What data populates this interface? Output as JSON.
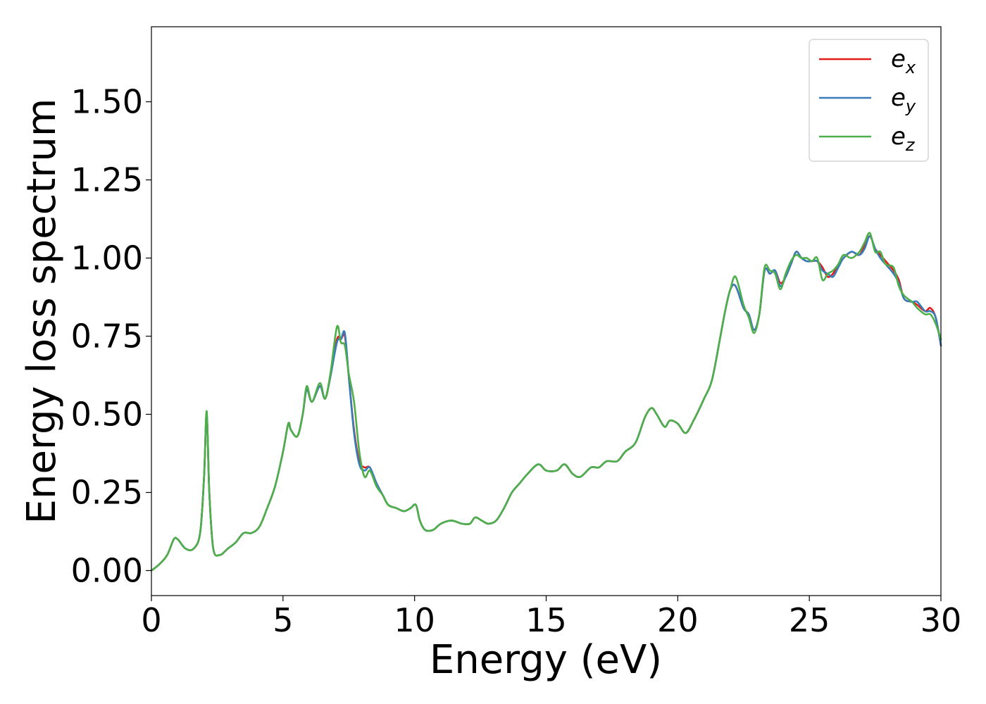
{
  "chart_data": {
    "type": "line",
    "title": "",
    "xlabel": "Energy (eV)",
    "ylabel": "Energy loss spectrum",
    "xlim": [
      0,
      30
    ],
    "ylim": [
      -0.08,
      1.74
    ],
    "xticks": [
      0,
      5,
      10,
      15,
      20,
      25,
      30
    ],
    "xtick_labels": [
      "0",
      "5",
      "10",
      "15",
      "20",
      "25",
      "30"
    ],
    "yticks": [
      0.0,
      0.25,
      0.5,
      0.75,
      1.0,
      1.25,
      1.5
    ],
    "ytick_labels": [
      "0.00",
      "0.25",
      "0.50",
      "0.75",
      "1.00",
      "1.25",
      "1.50"
    ],
    "grid": false,
    "legend_position": "top-right",
    "x": [
      0.0,
      0.3,
      0.6,
      0.85,
      1.0,
      1.3,
      1.6,
      1.85,
      2.0,
      2.1,
      2.2,
      2.35,
      2.6,
      2.9,
      3.2,
      3.5,
      3.8,
      4.1,
      4.4,
      4.7,
      5.0,
      5.2,
      5.3,
      5.55,
      5.75,
      5.9,
      6.1,
      6.4,
      6.6,
      6.8,
      7.05,
      7.2,
      7.35,
      7.5,
      7.7,
      7.9,
      8.1,
      8.3,
      8.55,
      8.8,
      9.0,
      9.3,
      9.6,
      9.85,
      10.05,
      10.2,
      10.4,
      10.7,
      11.0,
      11.4,
      11.8,
      12.1,
      12.3,
      12.55,
      12.8,
      13.1,
      13.4,
      13.7,
      14.0,
      14.3,
      14.7,
      15.0,
      15.4,
      15.7,
      16.0,
      16.3,
      16.7,
      17.0,
      17.3,
      17.7,
      18.0,
      18.4,
      18.75,
      19.0,
      19.2,
      19.5,
      19.7,
      20.0,
      20.3,
      20.6,
      21.0,
      21.3,
      21.6,
      21.8,
      22.0,
      22.2,
      22.5,
      22.7,
      22.9,
      23.1,
      23.3,
      23.5,
      23.7,
      23.9,
      24.1,
      24.3,
      24.5,
      24.7,
      24.9,
      25.1,
      25.3,
      25.5,
      25.7,
      25.9,
      26.1,
      26.3,
      26.6,
      26.9,
      27.1,
      27.3,
      27.5,
      27.7,
      27.9,
      28.2,
      28.4,
      28.6,
      28.9,
      29.1,
      29.4,
      29.6,
      29.8,
      30.0
    ],
    "series": [
      {
        "name": "e_x",
        "symbol": "e",
        "subscript": "x",
        "color": "#e41a1c",
        "values": [
          0.0,
          0.02,
          0.05,
          0.1,
          0.1,
          0.07,
          0.07,
          0.12,
          0.3,
          0.5,
          0.25,
          0.07,
          0.05,
          0.07,
          0.09,
          0.12,
          0.12,
          0.14,
          0.2,
          0.27,
          0.38,
          0.47,
          0.45,
          0.43,
          0.5,
          0.58,
          0.54,
          0.59,
          0.55,
          0.62,
          0.74,
          0.74,
          0.75,
          0.62,
          0.45,
          0.35,
          0.33,
          0.33,
          0.28,
          0.24,
          0.21,
          0.2,
          0.19,
          0.2,
          0.21,
          0.16,
          0.13,
          0.13,
          0.15,
          0.16,
          0.15,
          0.15,
          0.17,
          0.16,
          0.15,
          0.16,
          0.2,
          0.25,
          0.28,
          0.31,
          0.34,
          0.32,
          0.32,
          0.34,
          0.31,
          0.3,
          0.33,
          0.33,
          0.35,
          0.35,
          0.38,
          0.41,
          0.49,
          0.52,
          0.5,
          0.46,
          0.48,
          0.47,
          0.44,
          0.48,
          0.55,
          0.61,
          0.74,
          0.83,
          0.9,
          0.91,
          0.84,
          0.82,
          0.77,
          0.82,
          0.96,
          0.95,
          0.96,
          0.92,
          0.94,
          0.98,
          1.02,
          1.0,
          0.99,
          0.99,
          0.99,
          0.97,
          0.94,
          0.95,
          0.98,
          1.0,
          1.02,
          1.01,
          1.04,
          1.07,
          1.03,
          1.01,
          0.99,
          0.96,
          0.93,
          0.87,
          0.86,
          0.85,
          0.83,
          0.84,
          0.81,
          0.72
        ]
      },
      {
        "name": "e_y",
        "symbol": "e",
        "subscript": "y",
        "color": "#377eb8",
        "values": [
          0.0,
          0.02,
          0.05,
          0.1,
          0.1,
          0.07,
          0.07,
          0.12,
          0.3,
          0.5,
          0.25,
          0.07,
          0.05,
          0.07,
          0.09,
          0.12,
          0.12,
          0.14,
          0.2,
          0.27,
          0.38,
          0.47,
          0.45,
          0.43,
          0.5,
          0.58,
          0.54,
          0.59,
          0.55,
          0.62,
          0.73,
          0.74,
          0.76,
          0.62,
          0.44,
          0.34,
          0.32,
          0.33,
          0.28,
          0.24,
          0.21,
          0.2,
          0.19,
          0.2,
          0.21,
          0.16,
          0.13,
          0.13,
          0.15,
          0.16,
          0.15,
          0.15,
          0.17,
          0.16,
          0.15,
          0.16,
          0.2,
          0.25,
          0.28,
          0.31,
          0.34,
          0.32,
          0.32,
          0.34,
          0.31,
          0.3,
          0.33,
          0.33,
          0.35,
          0.35,
          0.38,
          0.41,
          0.49,
          0.52,
          0.5,
          0.46,
          0.48,
          0.47,
          0.44,
          0.48,
          0.55,
          0.61,
          0.74,
          0.83,
          0.9,
          0.91,
          0.84,
          0.82,
          0.77,
          0.82,
          0.96,
          0.95,
          0.96,
          0.91,
          0.94,
          0.98,
          1.02,
          1.0,
          0.99,
          0.99,
          0.99,
          0.96,
          0.95,
          0.94,
          0.97,
          1.0,
          1.02,
          1.01,
          1.03,
          1.07,
          1.03,
          1.0,
          0.98,
          0.95,
          0.92,
          0.87,
          0.86,
          0.86,
          0.83,
          0.83,
          0.81,
          0.72
        ]
      },
      {
        "name": "e_z",
        "symbol": "e",
        "subscript": "z",
        "color": "#4daf4a",
        "values": [
          0.0,
          0.02,
          0.05,
          0.1,
          0.1,
          0.07,
          0.07,
          0.12,
          0.3,
          0.51,
          0.25,
          0.07,
          0.05,
          0.07,
          0.09,
          0.12,
          0.12,
          0.14,
          0.2,
          0.27,
          0.38,
          0.47,
          0.45,
          0.43,
          0.5,
          0.59,
          0.54,
          0.6,
          0.55,
          0.63,
          0.78,
          0.73,
          0.72,
          0.63,
          0.54,
          0.38,
          0.3,
          0.32,
          0.27,
          0.24,
          0.21,
          0.2,
          0.19,
          0.2,
          0.21,
          0.16,
          0.13,
          0.13,
          0.15,
          0.16,
          0.15,
          0.15,
          0.17,
          0.16,
          0.15,
          0.16,
          0.2,
          0.25,
          0.28,
          0.31,
          0.34,
          0.32,
          0.32,
          0.34,
          0.31,
          0.3,
          0.33,
          0.33,
          0.35,
          0.35,
          0.38,
          0.41,
          0.49,
          0.52,
          0.5,
          0.46,
          0.48,
          0.47,
          0.44,
          0.48,
          0.55,
          0.61,
          0.74,
          0.83,
          0.9,
          0.94,
          0.85,
          0.81,
          0.76,
          0.82,
          0.97,
          0.96,
          0.95,
          0.9,
          0.95,
          0.99,
          1.01,
          1.0,
          1.0,
          0.99,
          1.0,
          0.93,
          0.95,
          0.96,
          0.98,
          1.01,
          1.0,
          1.02,
          1.05,
          1.08,
          1.02,
          1.02,
          0.98,
          0.97,
          0.91,
          0.88,
          0.86,
          0.84,
          0.82,
          0.82,
          0.79,
          0.74
        ]
      }
    ]
  }
}
